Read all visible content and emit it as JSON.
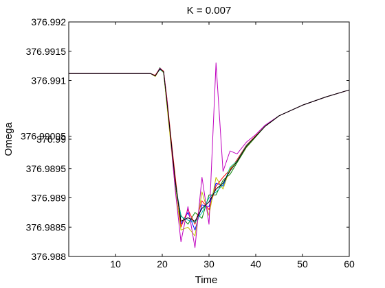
{
  "chart_data": {
    "type": "line",
    "title": "K = 0.007",
    "xlabel": "Time",
    "ylabel": "Omega",
    "xlim": [
      0,
      60
    ],
    "ylim": [
      376.988,
      376.992
    ],
    "xticks": [
      10,
      20,
      30,
      40,
      50,
      60
    ],
    "xtick_labels": [
      "10",
      "20",
      "30",
      "40",
      "50",
      "60"
    ],
    "yticks": [
      376.988,
      376.9885,
      376.989,
      376.9895,
      376.99,
      376.99005,
      376.991,
      376.9915,
      376.992
    ],
    "ytick_labels": [
      "376.988",
      "376.9885",
      "376.989",
      "376.9895",
      "376.99",
      "376.99005",
      "376.991",
      "376.9915",
      "376.992"
    ],
    "grid": false,
    "legend": "none",
    "base_x": [
      0,
      17.5,
      18.5,
      19.5,
      20.3,
      21,
      21.8,
      22.8,
      24,
      25.5,
      27,
      28.5,
      30,
      31.5,
      33,
      34.5,
      36,
      38,
      40,
      42,
      45,
      50,
      55,
      60
    ],
    "base_y": [
      376.99112,
      376.99112,
      376.99108,
      376.9912,
      376.99115,
      376.99065,
      376.99005,
      376.9893,
      376.98862,
      376.98868,
      376.98862,
      376.9888,
      376.98895,
      376.98915,
      376.98925,
      376.98945,
      376.98962,
      376.98988,
      376.99005,
      376.99022,
      376.9904,
      376.99058,
      376.99072,
      376.99084
    ],
    "series": [
      {
        "color": "#0000ff",
        "values": [
          376.99112,
          376.99112,
          376.99108,
          376.9912,
          376.99115,
          376.99065,
          376.99005,
          376.9893,
          376.98855,
          376.98875,
          376.98845,
          376.98888,
          376.98885,
          376.98925,
          376.9892,
          376.9895,
          376.98962,
          376.98988,
          376.99005,
          376.99022,
          376.9904,
          376.99058,
          376.99072,
          376.99084
        ]
      },
      {
        "color": "#008000",
        "values": [
          376.99112,
          376.99112,
          376.99107,
          376.99122,
          376.99113,
          376.9906,
          376.99,
          376.9892,
          376.9887,
          376.98855,
          376.98875,
          376.98865,
          376.98905,
          376.98905,
          376.9893,
          376.9894,
          376.9896,
          376.98986,
          376.99004,
          376.99022,
          376.9904,
          376.99058,
          376.99072,
          376.99084
        ]
      },
      {
        "color": "#ff0000",
        "values": [
          376.99112,
          376.99112,
          376.99109,
          376.99121,
          376.99116,
          376.9907,
          376.99008,
          376.98935,
          376.9885,
          376.9888,
          376.98855,
          376.98895,
          376.9888,
          376.9892,
          376.98935,
          376.98948,
          376.98965,
          376.9899,
          376.99006,
          376.99022,
          376.9904,
          376.99058,
          376.99072,
          376.99084
        ]
      },
      {
        "color": "#00bfbf",
        "values": [
          376.99112,
          376.99112,
          376.99108,
          376.99119,
          376.99114,
          376.99062,
          376.99002,
          376.98925,
          376.98868,
          376.98862,
          376.98858,
          376.98875,
          376.989,
          376.9891,
          376.98922,
          376.98952,
          376.98963,
          376.98989,
          376.99005,
          376.99022,
          376.9904,
          376.99058,
          376.99072,
          376.99084
        ]
      },
      {
        "color": "#bfbf00",
        "values": [
          376.99112,
          376.99112,
          376.99107,
          376.9912,
          376.99114,
          376.99058,
          376.98995,
          376.98915,
          376.98845,
          376.9885,
          376.98835,
          376.9891,
          376.9887,
          376.98935,
          376.98915,
          376.9895,
          376.98962,
          376.98987,
          376.99005,
          376.99022,
          376.9904,
          376.99058,
          376.99072,
          376.99084
        ]
      },
      {
        "color": "#bf00bf",
        "values": [
          376.99112,
          376.99112,
          376.99108,
          376.99121,
          376.99115,
          376.99068,
          376.99002,
          376.98912,
          376.98825,
          376.98885,
          376.98815,
          376.98935,
          376.98855,
          376.9913,
          376.98945,
          376.9898,
          376.98975,
          376.98995,
          376.99008,
          376.99024,
          376.9904,
          376.99058,
          376.99072,
          376.99084
        ]
      },
      {
        "color": "#000000",
        "values": [
          376.99112,
          376.99112,
          376.99108,
          376.9912,
          376.99115,
          376.99064,
          376.99004,
          376.98928,
          376.9886,
          376.98866,
          376.9886,
          376.98882,
          376.98893,
          376.98915,
          376.98925,
          376.98946,
          376.98962,
          376.98988,
          376.99005,
          376.99022,
          376.9904,
          376.99058,
          376.99072,
          376.99084
        ]
      }
    ]
  }
}
